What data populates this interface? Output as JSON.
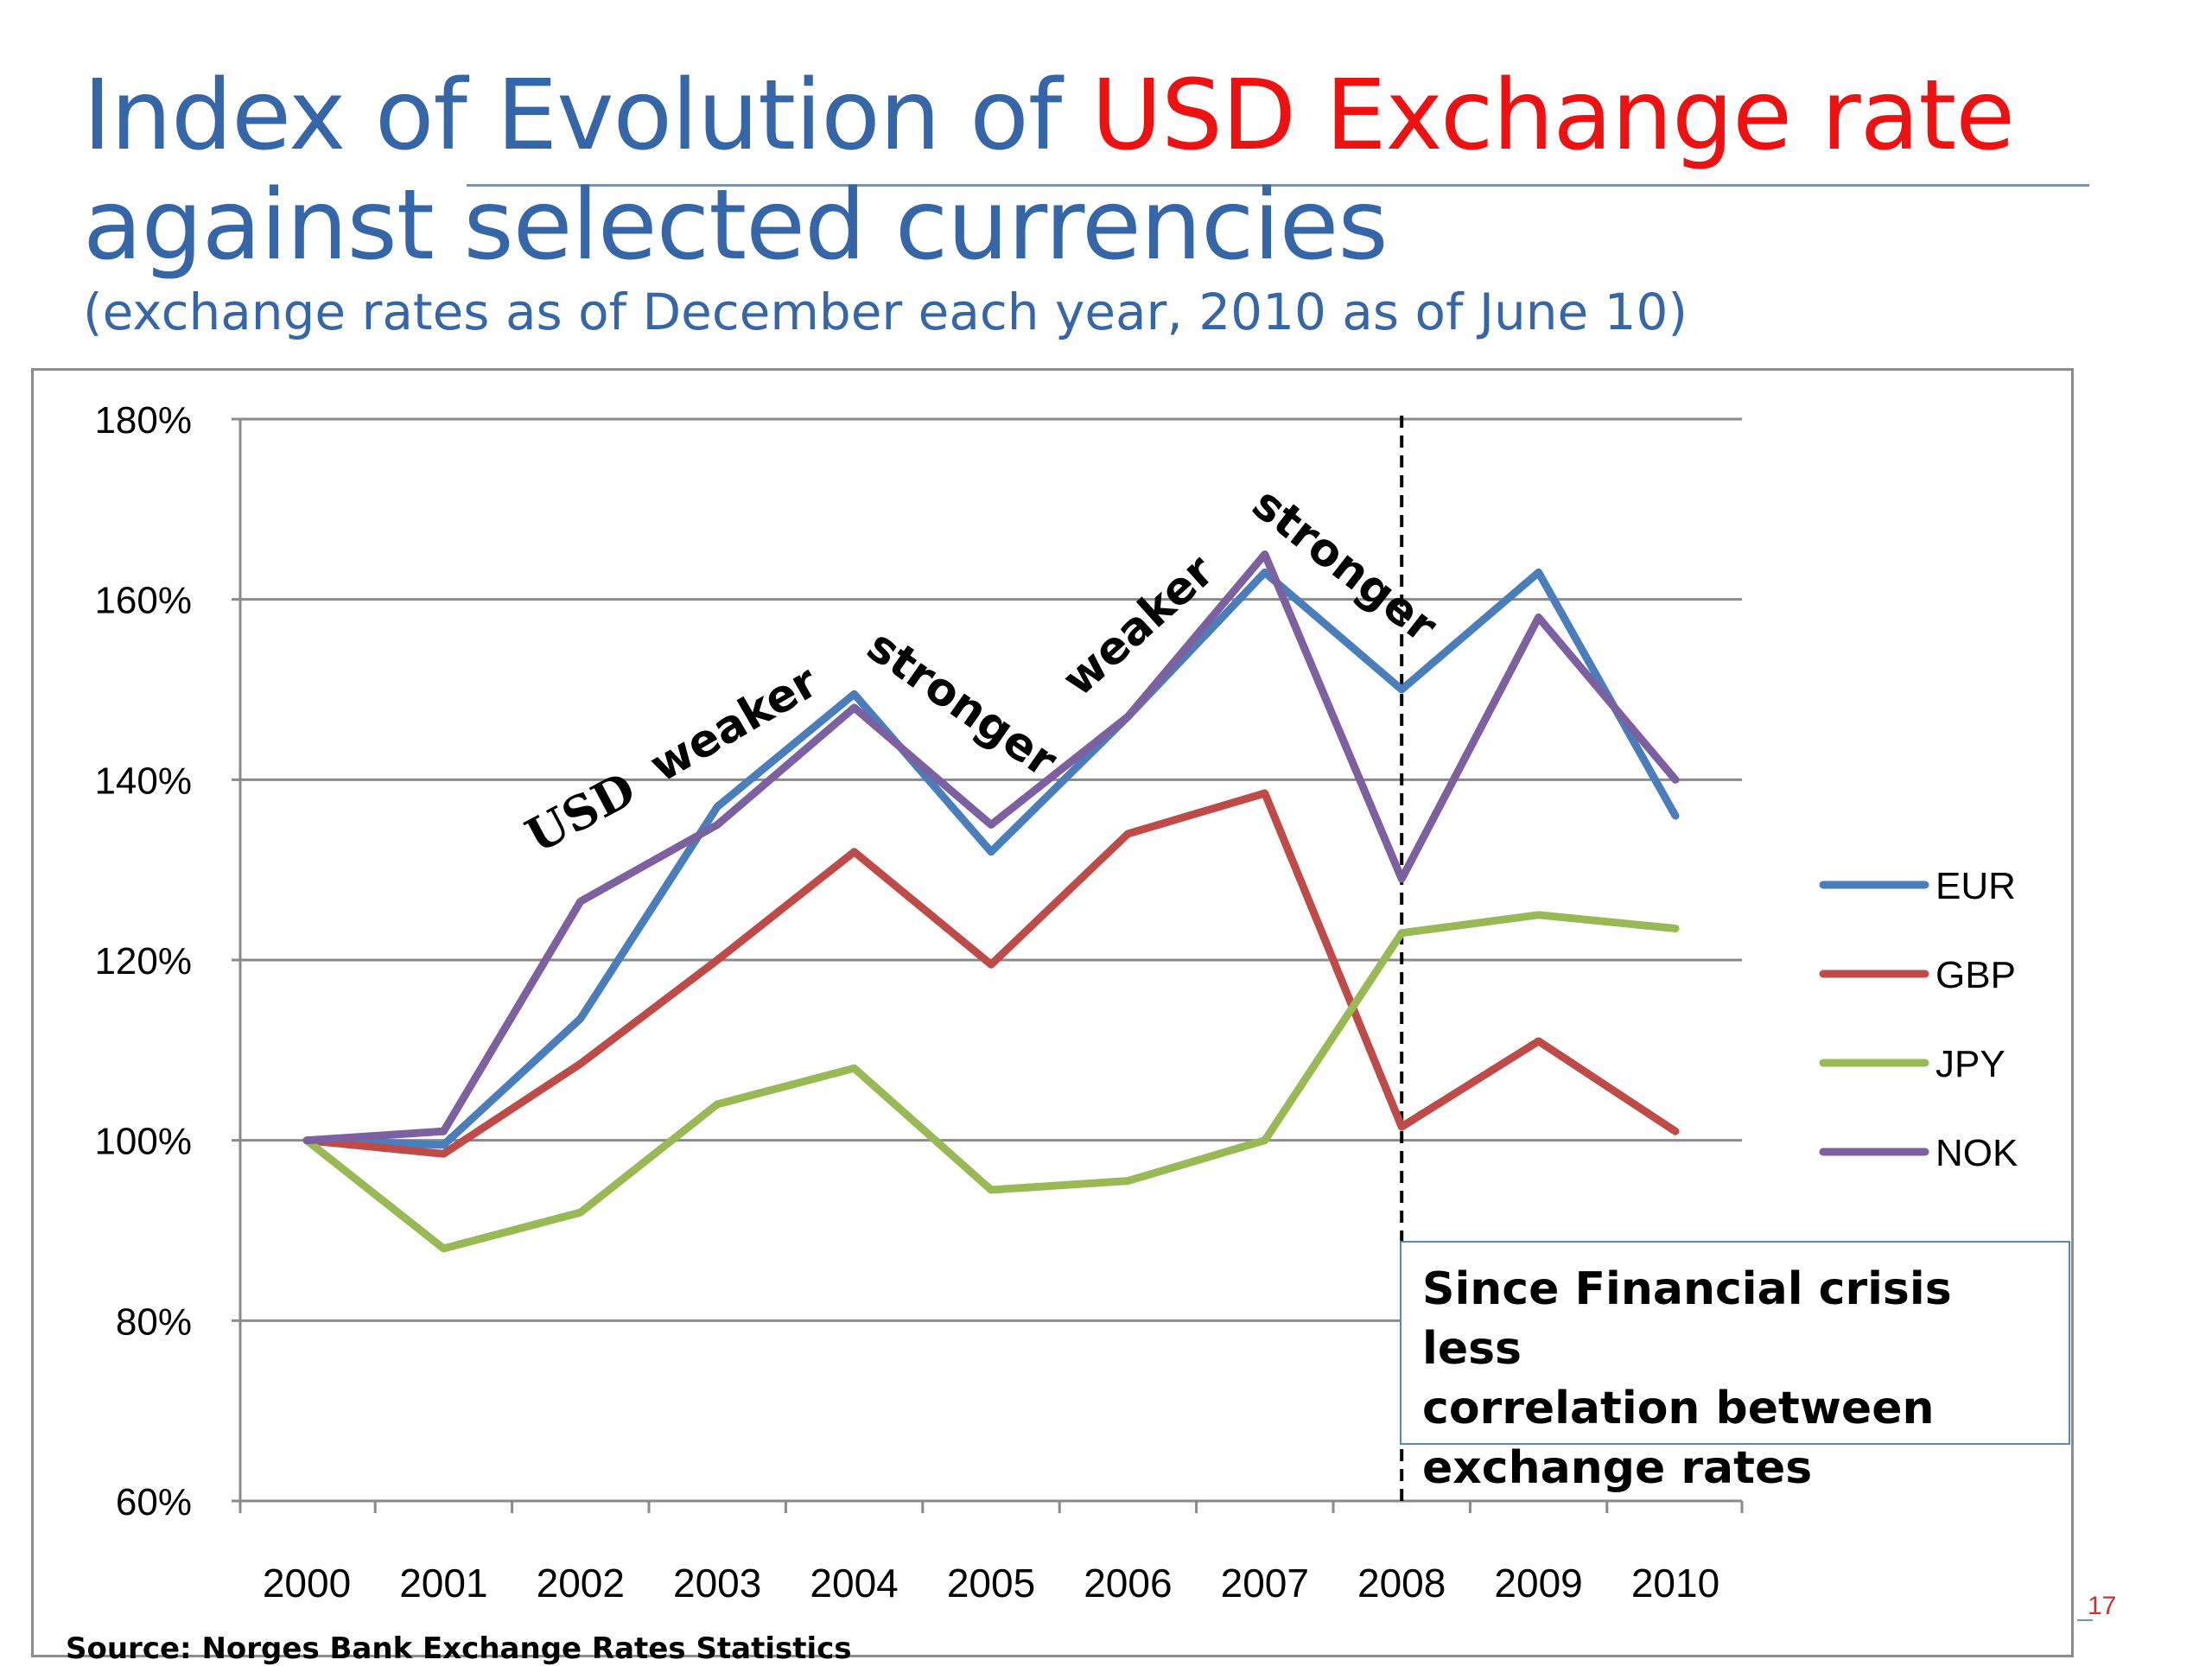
{
  "title": {
    "part1": "Index of Evolution of ",
    "highlight": "USD Exchange rate",
    "line2": "against selected currencies",
    "subtitle": "(exchange rates as of December each year, 2010 as of June 10)"
  },
  "colors": {
    "title": "#3566a8",
    "highlight": "#ee1111",
    "EUR": "#4a7ebb",
    "GBP": "#be4b48",
    "JPY": "#98b954",
    "NOK": "#7d60a0"
  },
  "chart_data": {
    "type": "line",
    "title": "Index of Evolution of USD Exchange rate against selected currencies",
    "xlabel": "",
    "ylabel": "",
    "ylim": [
      60,
      180
    ],
    "y_ticks": [
      "60%",
      "80%",
      "100%",
      "120%",
      "140%",
      "160%",
      "180%"
    ],
    "y_tick_values": [
      60,
      80,
      100,
      120,
      140,
      160,
      180
    ],
    "categories": [
      "2000",
      "2001",
      "2002",
      "2003",
      "2004",
      "2005",
      "2006",
      "2007",
      "2008",
      "2009",
      "2010"
    ],
    "series": [
      {
        "name": "EUR",
        "values": [
          100,
          99.5,
          113.5,
          137,
          149.5,
          132,
          147,
          163,
          150,
          163,
          136
        ]
      },
      {
        "name": "GBP",
        "values": [
          100,
          98.5,
          108.5,
          120,
          132,
          119.5,
          134,
          138.5,
          101.5,
          111,
          101
        ]
      },
      {
        "name": "JPY",
        "values": [
          100,
          88,
          92,
          104,
          108,
          94.5,
          95.5,
          100,
          123,
          125,
          123.5
        ]
      },
      {
        "name": "NOK",
        "values": [
          100,
          101,
          126.5,
          135,
          148,
          135,
          147,
          165,
          129,
          158,
          140
        ]
      }
    ],
    "legend_position": "right",
    "grid": true,
    "vline": {
      "x": "2008",
      "style": "dashed"
    },
    "annotations": {
      "usd": "USD",
      "weaker1": "weaker",
      "stronger1": "stronger",
      "weaker2": "weaker",
      "stronger2": "stronger"
    },
    "note": {
      "line1": "Since Financial crisis less",
      "line2": "correlation between",
      "line3": "exchange rates"
    }
  },
  "source": "Source: Norges Bank Exchange Rates Statistics",
  "page_number": "17"
}
